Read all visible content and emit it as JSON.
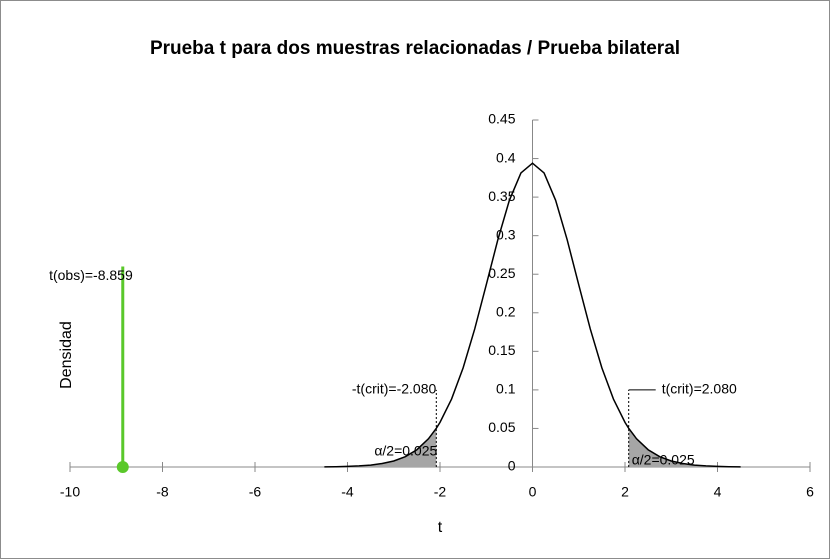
{
  "chart_data": {
    "type": "line",
    "title": "Prueba t para dos muestras relacionadas / Prueba bilateral",
    "xlabel": "t",
    "ylabel": "Densidad",
    "x": [
      -4.5,
      -4.25,
      -4,
      -3.75,
      -3.5,
      -3.25,
      -3,
      -2.75,
      -2.5,
      -2.25,
      -2.08,
      -2,
      -1.75,
      -1.5,
      -1.25,
      -1,
      -0.75,
      -0.5,
      -0.25,
      0,
      0.25,
      0.5,
      0.75,
      1,
      1.25,
      1.5,
      1.75,
      2,
      2.08,
      2.25,
      2.5,
      2.75,
      3,
      3.25,
      3.5,
      3.75,
      4,
      4.25,
      4.5
    ],
    "series": [
      {
        "color": "#000000",
        "values": [
          0.0002,
          0.0004,
          0.0008,
          0.0014,
          0.0025,
          0.0045,
          0.0078,
          0.0134,
          0.0224,
          0.0366,
          0.0502,
          0.0579,
          0.0881,
          0.1286,
          0.1789,
          0.2362,
          0.2946,
          0.3459,
          0.3813,
          0.394,
          0.3813,
          0.3459,
          0.2946,
          0.2362,
          0.1789,
          0.1286,
          0.0881,
          0.0579,
          0.0502,
          0.0366,
          0.0224,
          0.0134,
          0.0078,
          0.0045,
          0.0025,
          0.0014,
          0.0008,
          0.0004,
          0.0002
        ]
      }
    ],
    "shade_color": "#a6a6a6",
    "xlim": [
      -10,
      6
    ],
    "xticks": [
      -10,
      -8,
      -6,
      -4,
      -2,
      0,
      2,
      4,
      6
    ],
    "ylim": [
      0,
      0.45
    ],
    "yticks": [
      0,
      0.05,
      0.1,
      0.15,
      0.2,
      0.25,
      0.3,
      0.35,
      0.4,
      0.45
    ],
    "observed": {
      "value": -8.859,
      "height": 0.26,
      "label": "t(obs)=-8.859",
      "color": "#5ac82a"
    },
    "critical": [
      {
        "value": -2.08,
        "height": 0.1,
        "label": "-t(crit)=-2.080"
      },
      {
        "value": 2.08,
        "height": 0.1,
        "label": "t(crit)=2.080"
      }
    ],
    "tail_labels": [
      "α/2=0.025",
      "α/2=0.025"
    ]
  }
}
